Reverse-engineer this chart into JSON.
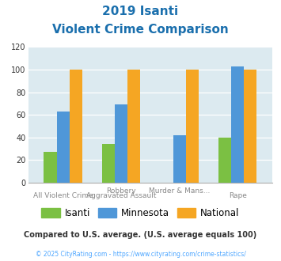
{
  "title_line1": "2019 Isanti",
  "title_line2": "Violent Crime Comparison",
  "cat_labels_top": [
    "",
    "Robbery",
    "Murder & Mans...",
    ""
  ],
  "cat_labels_bot": [
    "All Violent Crime",
    "Aggravated Assault",
    "",
    "Rape"
  ],
  "isanti": [
    27,
    34,
    0,
    40
  ],
  "minnesota": [
    63,
    69,
    42,
    103
  ],
  "national": [
    100,
    100,
    100,
    100
  ],
  "color_isanti": "#7bc043",
  "color_minnesota": "#4f97d8",
  "color_national": "#f5a623",
  "ylim": [
    0,
    120
  ],
  "yticks": [
    0,
    20,
    40,
    60,
    80,
    100,
    120
  ],
  "bg_color": "#dceaf0",
  "title_color": "#1a6fad",
  "footer_text": "Compared to U.S. average. (U.S. average equals 100)",
  "footer_color": "#333333",
  "copyright_text": "© 2025 CityRating.com - https://www.cityrating.com/crime-statistics/",
  "copyright_color": "#4da6ff",
  "legend_labels": [
    "Isanti",
    "Minnesota",
    "National"
  ],
  "bar_width": 0.22
}
